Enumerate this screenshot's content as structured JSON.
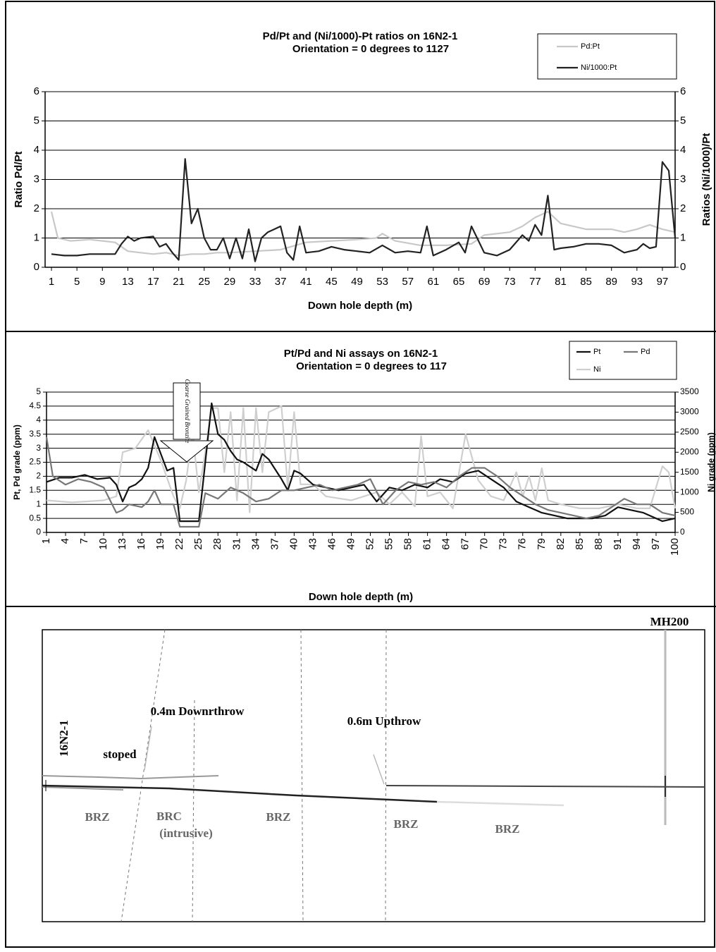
{
  "chart_data": [
    {
      "type": "line",
      "title": "Pd/Pt and (Ni/1000)-Pt ratios on 16N2-1",
      "subtitle": "Orientation = 0 degrees to 1127",
      "x_label": "Down hole depth (m)",
      "y_label": "Ratio Pd/Pt",
      "y2_label": "Ratios (Ni/1000)/Pt",
      "xlim": [
        0,
        99
      ],
      "xticks": [
        1,
        5,
        9,
        13,
        17,
        21,
        25,
        29,
        33,
        37,
        41,
        45,
        49,
        53,
        57,
        61,
        65,
        69,
        73,
        77,
        81,
        85,
        89,
        93,
        97
      ],
      "ylim": [
        0,
        6
      ],
      "yticks": [
        0,
        1,
        2,
        3,
        4,
        5,
        6
      ],
      "y2lim": [
        0,
        6
      ],
      "y2ticks": [
        0,
        1,
        2,
        3,
        4,
        5,
        6
      ],
      "grid": true,
      "series": [
        {
          "name": "Pd:Pt",
          "color": "#c8c8c8",
          "x": [
            1,
            2,
            4,
            7,
            9,
            11,
            13,
            15,
            17,
            19,
            21,
            23,
            25,
            27,
            29,
            33,
            37,
            41,
            45,
            49,
            52,
            53,
            55,
            59,
            63,
            67,
            69,
            71,
            73,
            75,
            77,
            79,
            81,
            83,
            85,
            89,
            91,
            93,
            95,
            97,
            99
          ],
          "values": [
            1.9,
            1.0,
            0.9,
            0.95,
            0.9,
            0.85,
            0.55,
            0.5,
            0.45,
            0.5,
            0.4,
            0.45,
            0.45,
            0.5,
            0.5,
            0.55,
            0.6,
            0.85,
            0.9,
            0.95,
            1.0,
            1.15,
            0.9,
            0.75,
            0.75,
            0.8,
            1.1,
            1.15,
            1.2,
            1.4,
            1.7,
            1.9,
            1.5,
            1.4,
            1.3,
            1.3,
            1.2,
            1.3,
            1.45,
            1.3,
            1.2
          ]
        },
        {
          "name": "Ni/1000:Pt",
          "color": "#222222",
          "axis": "y2",
          "x": [
            1,
            3,
            5,
            7,
            9,
            11,
            12,
            13,
            14,
            15,
            17,
            18,
            19,
            20,
            21,
            22,
            23,
            24,
            25,
            26,
            27,
            28,
            29,
            30,
            31,
            32,
            33,
            34,
            35,
            36,
            37,
            38,
            39,
            40,
            41,
            43,
            45,
            47,
            49,
            51,
            53,
            55,
            57,
            59,
            60,
            61,
            63,
            65,
            66,
            67,
            69,
            71,
            73,
            75,
            76,
            77,
            78,
            79,
            80,
            81,
            83,
            85,
            87,
            89,
            91,
            93,
            94,
            95,
            96,
            97,
            98,
            99
          ],
          "values": [
            0.45,
            0.4,
            0.4,
            0.45,
            0.45,
            0.45,
            0.8,
            1.05,
            0.9,
            1.0,
            1.05,
            0.7,
            0.8,
            0.5,
            0.25,
            3.7,
            1.5,
            2.0,
            1.0,
            0.6,
            0.6,
            1.0,
            0.3,
            1.0,
            0.3,
            1.3,
            0.2,
            1.0,
            1.2,
            1.3,
            1.4,
            0.5,
            0.25,
            1.4,
            0.5,
            0.55,
            0.7,
            0.6,
            0.55,
            0.5,
            0.75,
            0.5,
            0.55,
            0.5,
            1.4,
            0.4,
            0.6,
            0.85,
            0.5,
            1.4,
            0.5,
            0.4,
            0.6,
            1.1,
            0.9,
            1.45,
            1.1,
            2.45,
            0.6,
            0.65,
            0.7,
            0.8,
            0.8,
            0.75,
            0.5,
            0.6,
            0.8,
            0.65,
            0.7,
            3.6,
            3.3,
            1.0
          ]
        }
      ]
    },
    {
      "type": "line",
      "title": "Pt/Pd and Ni assays on 16N2-1",
      "subtitle": "Orientation = 0 degrees to 117",
      "x_label": "Down hole depth (m)",
      "y_label": "Pt, Pd grade (ppm)",
      "y2_label": "Ni grade (ppm)",
      "annotation": "Coarse Grained Bronzite",
      "xlim": [
        1,
        100
      ],
      "xticks": [
        1,
        4,
        7,
        10,
        13,
        16,
        19,
        22,
        25,
        28,
        31,
        34,
        37,
        40,
        43,
        46,
        49,
        52,
        55,
        58,
        61,
        64,
        67,
        70,
        73,
        76,
        79,
        82,
        85,
        88,
        91,
        94,
        97,
        100
      ],
      "ylim": [
        0,
        5
      ],
      "yticks": [
        0,
        0.5,
        1,
        1.5,
        2,
        2.5,
        3,
        3.5,
        4,
        4.5,
        5
      ],
      "y2lim": [
        0,
        3500
      ],
      "y2ticks": [
        0,
        500,
        1000,
        1500,
        2000,
        2500,
        3000,
        3500
      ],
      "grid": true,
      "series": [
        {
          "name": "Pt",
          "color": "#111111",
          "x": [
            1,
            3,
            5,
            7,
            9,
            11,
            12,
            13,
            14,
            15,
            16,
            17,
            18,
            19,
            20,
            21,
            22,
            23,
            25,
            26,
            27,
            28,
            29,
            30,
            31,
            32,
            34,
            35,
            36,
            38,
            39,
            40,
            41,
            43,
            45,
            47,
            49,
            51,
            53,
            55,
            57,
            59,
            61,
            63,
            65,
            67,
            69,
            71,
            73,
            75,
            77,
            79,
            81,
            83,
            85,
            87,
            89,
            91,
            93,
            95,
            97,
            98,
            100
          ],
          "values": [
            1.8,
            1.95,
            1.95,
            2.05,
            1.9,
            1.95,
            1.7,
            1.1,
            1.6,
            1.7,
            1.9,
            2.3,
            3.4,
            2.8,
            2.2,
            2.3,
            0.4,
            0.4,
            0.4,
            2.5,
            4.6,
            3.5,
            3.3,
            2.9,
            2.6,
            2.5,
            2.2,
            2.8,
            2.6,
            1.9,
            1.5,
            2.2,
            2.1,
            1.7,
            1.6,
            1.5,
            1.6,
            1.7,
            1.1,
            1.6,
            1.5,
            1.7,
            1.6,
            1.9,
            1.8,
            2.1,
            2.2,
            1.9,
            1.6,
            1.1,
            0.9,
            0.7,
            0.6,
            0.5,
            0.5,
            0.5,
            0.6,
            0.9,
            0.8,
            0.7,
            0.5,
            0.4,
            0.5
          ]
        },
        {
          "name": "Pd",
          "color": "#777777",
          "x": [
            1,
            2,
            4,
            6,
            8,
            10,
            12,
            13,
            14,
            16,
            17,
            18,
            19,
            21,
            22,
            25,
            26,
            28,
            30,
            32,
            34,
            36,
            38,
            40,
            42,
            44,
            46,
            48,
            50,
            52,
            54,
            56,
            58,
            60,
            62,
            64,
            66,
            68,
            70,
            72,
            74,
            76,
            78,
            80,
            82,
            84,
            86,
            88,
            90,
            92,
            94,
            96,
            98,
            100
          ],
          "values": [
            3.4,
            2.0,
            1.7,
            1.9,
            1.8,
            1.6,
            0.7,
            0.8,
            1.0,
            0.9,
            1.1,
            1.5,
            1.0,
            1.0,
            0.2,
            0.2,
            1.4,
            1.2,
            1.6,
            1.4,
            1.1,
            1.2,
            1.5,
            1.5,
            1.6,
            1.7,
            1.5,
            1.6,
            1.7,
            1.9,
            1.0,
            1.5,
            1.8,
            1.7,
            1.8,
            1.6,
            2.0,
            2.3,
            2.3,
            2.0,
            1.6,
            1.3,
            1.0,
            0.8,
            0.7,
            0.6,
            0.5,
            0.6,
            0.9,
            1.2,
            1.0,
            1.0,
            0.7,
            0.6
          ]
        },
        {
          "name": "Ni",
          "color": "#cfcfcf",
          "axis": "y2",
          "x": [
            1,
            5,
            10,
            12,
            13,
            15,
            17,
            19,
            21,
            22,
            23,
            24,
            25,
            26,
            27,
            28,
            29,
            30,
            31,
            32,
            33,
            34,
            35,
            36,
            38,
            39,
            40,
            41,
            43,
            45,
            47,
            49,
            51,
            53,
            55,
            57,
            59,
            60,
            61,
            63,
            65,
            67,
            69,
            71,
            73,
            75,
            76,
            77,
            78,
            79,
            80,
            82,
            85,
            88,
            91,
            94,
            96,
            98,
            99,
            100
          ],
          "values": [
            800,
            750,
            800,
            900,
            2000,
            2100,
            2550,
            1800,
            900,
            600,
            1300,
            2500,
            1000,
            2000,
            3100,
            3100,
            1500,
            3000,
            800,
            3100,
            500,
            3100,
            1500,
            3000,
            3150,
            1100,
            3000,
            1200,
            1200,
            900,
            850,
            800,
            900,
            1000,
            700,
            1000,
            650,
            2400,
            900,
            1000,
            600,
            2450,
            1300,
            900,
            800,
            1500,
            900,
            1400,
            800,
            1600,
            800,
            700,
            600,
            600,
            700,
            600,
            600,
            1650,
            1500,
            600
          ]
        }
      ]
    }
  ],
  "diagram": {
    "labels": [
      "16N2-1",
      "stoped",
      "0.4m Downrthrow",
      "0.6m Upthrow",
      "MH200",
      "BRZ",
      "BRC",
      "(intrusive)",
      "BRZ",
      "BRZ",
      "BRZ"
    ]
  }
}
